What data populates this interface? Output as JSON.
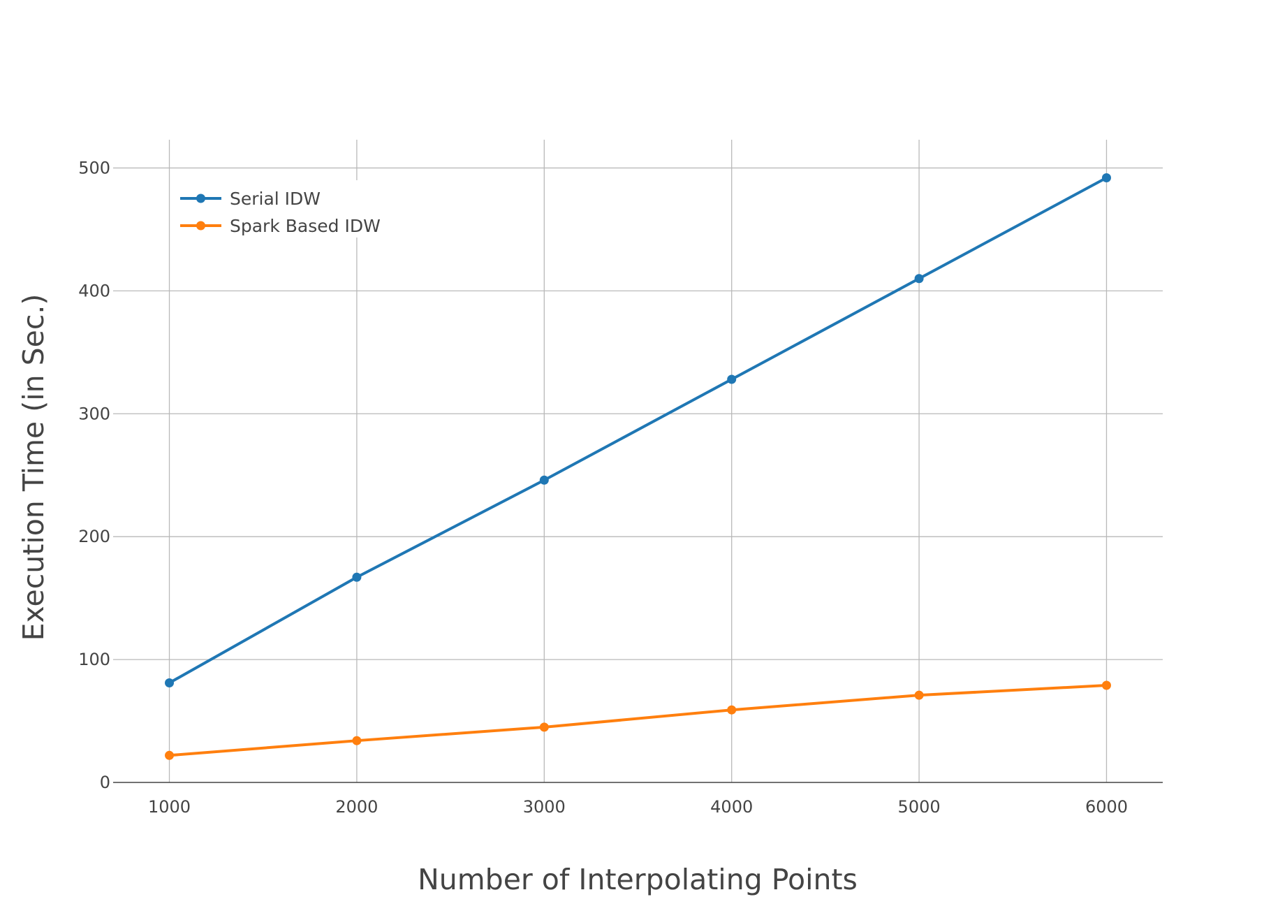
{
  "chart_data": {
    "type": "line",
    "x": [
      1000,
      2000,
      3000,
      4000,
      5000,
      6000
    ],
    "series": [
      {
        "name": "Serial IDW",
        "values": [
          81,
          167,
          246,
          328,
          410,
          492
        ],
        "color": "#1f77b4"
      },
      {
        "name": "Spark Based IDW",
        "values": [
          22,
          34,
          45,
          59,
          71,
          79
        ],
        "color": "#ff7f0e"
      }
    ],
    "xlabel": "Number of Interpolating Points",
    "ylabel": "Execution Time (in Sec.)",
    "x_ticks": [
      "1000",
      "2000",
      "3000",
      "4000",
      "5000",
      "6000"
    ],
    "y_ticks": [
      "0",
      "100",
      "200",
      "300",
      "400",
      "500"
    ],
    "xlim": [
      700,
      6300
    ],
    "ylim": [
      0,
      523
    ],
    "grid": true,
    "legend_position": "top-left",
    "gridline_color": "#b9b9b9",
    "axis_line_color": "#444444"
  }
}
